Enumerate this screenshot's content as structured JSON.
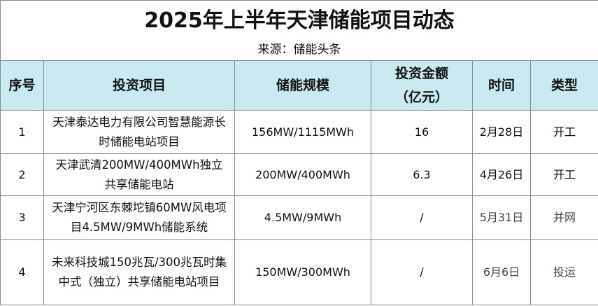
{
  "header": {
    "title": "2025年上半年天津储能项目动态",
    "source": "来源：储能头条"
  },
  "table": {
    "columns": [
      "序号",
      "投资项目",
      "储能规模",
      "投资金额\n（亿元）",
      "时间",
      "类型"
    ],
    "rows": [
      [
        "1",
        "天津泰达电力有限公司智慧能源长时储能电站项目",
        "156MW/1115MWh",
        "16",
        "2月28日",
        "开工"
      ],
      [
        "2",
        "天津武清200MW/400MWh独立共享储能电站",
        "200MW/400MWh",
        "6.3",
        "4月26日",
        "开工"
      ],
      [
        "3",
        "天津宁河区东棘坨镇60MW风电项目4.5MW/9MWh储能系统",
        "4.5MW/9MWh",
        "/",
        "5月31日",
        "并网"
      ],
      [
        "4",
        "未来科技城150兆瓦/300兆瓦时集中式（独立）共享储能电站项目",
        "150MW/300MWh",
        "/",
        "6月6日",
        "投运"
      ]
    ]
  }
}
